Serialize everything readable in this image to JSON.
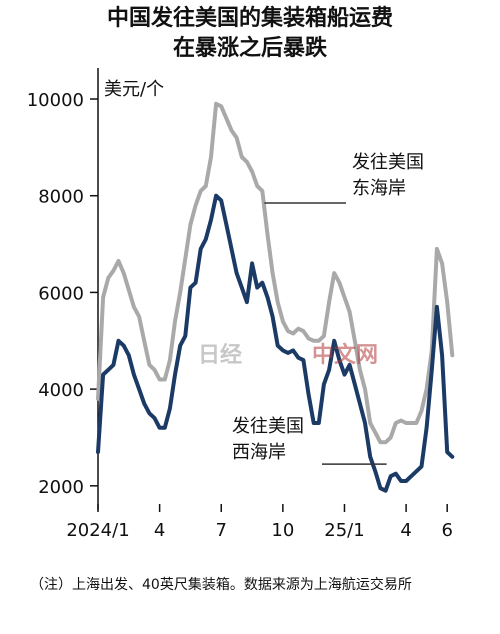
{
  "chart_data": {
    "type": "line",
    "title": "中国发往美国的集装箱船运费",
    "subtitle": "在暴涨之后暴跌",
    "ylabel": "美元/个",
    "ylim": [
      1500,
      10600
    ],
    "yticks": [
      2000,
      4000,
      6000,
      8000,
      10000
    ],
    "xlim": [
      0,
      18.5
    ],
    "xticks": [
      {
        "x": 0,
        "label": "2024/1"
      },
      {
        "x": 3,
        "label": "4"
      },
      {
        "x": 6,
        "label": "7"
      },
      {
        "x": 9,
        "label": "10"
      },
      {
        "x": 12,
        "label": "25/1"
      },
      {
        "x": 15,
        "label": "4"
      },
      {
        "x": 17,
        "label": "6"
      }
    ],
    "series": [
      {
        "name": "发往美国东海岸",
        "label_lines": [
          "发往美国",
          "东海岸"
        ],
        "color": "#a9a9a9",
        "points": [
          [
            0,
            3800
          ],
          [
            0.25,
            5900
          ],
          [
            0.5,
            6300
          ],
          [
            0.75,
            6450
          ],
          [
            1,
            6650
          ],
          [
            1.25,
            6400
          ],
          [
            1.5,
            6050
          ],
          [
            1.75,
            5700
          ],
          [
            2,
            5500
          ],
          [
            2.25,
            5000
          ],
          [
            2.5,
            4500
          ],
          [
            2.75,
            4400
          ],
          [
            3,
            4200
          ],
          [
            3.25,
            4200
          ],
          [
            3.5,
            4600
          ],
          [
            3.75,
            5400
          ],
          [
            4,
            6000
          ],
          [
            4.25,
            6700
          ],
          [
            4.5,
            7400
          ],
          [
            4.75,
            7800
          ],
          [
            5,
            8100
          ],
          [
            5.25,
            8200
          ],
          [
            5.5,
            8800
          ],
          [
            5.75,
            9900
          ],
          [
            6,
            9850
          ],
          [
            6.25,
            9600
          ],
          [
            6.5,
            9350
          ],
          [
            6.75,
            9200
          ],
          [
            7,
            8800
          ],
          [
            7.25,
            8700
          ],
          [
            7.5,
            8500
          ],
          [
            7.75,
            8200
          ],
          [
            8,
            8100
          ],
          [
            8.25,
            7200
          ],
          [
            8.5,
            6400
          ],
          [
            8.75,
            5800
          ],
          [
            9,
            5400
          ],
          [
            9.25,
            5200
          ],
          [
            9.5,
            5150
          ],
          [
            9.75,
            5250
          ],
          [
            10,
            5200
          ],
          [
            10.25,
            5050
          ],
          [
            10.5,
            5000
          ],
          [
            10.75,
            5000
          ],
          [
            11,
            5100
          ],
          [
            11.25,
            5800
          ],
          [
            11.5,
            6400
          ],
          [
            11.75,
            6200
          ],
          [
            12,
            5900
          ],
          [
            12.25,
            5600
          ],
          [
            12.5,
            5000
          ],
          [
            12.75,
            4400
          ],
          [
            13,
            4000
          ],
          [
            13.25,
            3300
          ],
          [
            13.5,
            3100
          ],
          [
            13.75,
            2900
          ],
          [
            14,
            2900
          ],
          [
            14.25,
            3000
          ],
          [
            14.5,
            3300
          ],
          [
            14.75,
            3350
          ],
          [
            15,
            3300
          ],
          [
            15.25,
            3300
          ],
          [
            15.5,
            3300
          ],
          [
            15.75,
            3550
          ],
          [
            16,
            4000
          ],
          [
            16.25,
            4800
          ],
          [
            16.5,
            6900
          ],
          [
            16.75,
            6600
          ],
          [
            17,
            5800
          ],
          [
            17.25,
            4700
          ]
        ]
      },
      {
        "name": "发往美国西海岸",
        "label_lines": [
          "发往美国",
          "西海岸"
        ],
        "color": "#1b3a66",
        "points": [
          [
            0,
            2700
          ],
          [
            0.25,
            4300
          ],
          [
            0.5,
            4400
          ],
          [
            0.75,
            4500
          ],
          [
            1,
            5000
          ],
          [
            1.25,
            4900
          ],
          [
            1.5,
            4700
          ],
          [
            1.75,
            4300
          ],
          [
            2,
            4000
          ],
          [
            2.25,
            3700
          ],
          [
            2.5,
            3500
          ],
          [
            2.75,
            3400
          ],
          [
            3,
            3200
          ],
          [
            3.25,
            3200
          ],
          [
            3.5,
            3600
          ],
          [
            3.75,
            4300
          ],
          [
            4,
            4900
          ],
          [
            4.25,
            5100
          ],
          [
            4.5,
            6100
          ],
          [
            4.75,
            6200
          ],
          [
            5,
            6900
          ],
          [
            5.25,
            7100
          ],
          [
            5.5,
            7500
          ],
          [
            5.75,
            8000
          ],
          [
            6,
            7900
          ],
          [
            6.25,
            7400
          ],
          [
            6.5,
            6900
          ],
          [
            6.75,
            6400
          ],
          [
            7,
            6100
          ],
          [
            7.25,
            5800
          ],
          [
            7.5,
            6600
          ],
          [
            7.75,
            6100
          ],
          [
            8,
            6200
          ],
          [
            8.25,
            5900
          ],
          [
            8.5,
            5500
          ],
          [
            8.75,
            4900
          ],
          [
            9,
            4800
          ],
          [
            9.25,
            4750
          ],
          [
            9.5,
            4800
          ],
          [
            9.75,
            4650
          ],
          [
            10,
            4600
          ],
          [
            10.25,
            3900
          ],
          [
            10.5,
            3300
          ],
          [
            10.75,
            3300
          ],
          [
            11,
            4100
          ],
          [
            11.25,
            4400
          ],
          [
            11.5,
            5000
          ],
          [
            11.75,
            4600
          ],
          [
            12,
            4300
          ],
          [
            12.25,
            4500
          ],
          [
            12.5,
            4100
          ],
          [
            12.75,
            3700
          ],
          [
            13,
            3300
          ],
          [
            13.25,
            2600
          ],
          [
            13.5,
            2300
          ],
          [
            13.75,
            1950
          ],
          [
            14,
            1900
          ],
          [
            14.25,
            2200
          ],
          [
            14.5,
            2250
          ],
          [
            14.75,
            2100
          ],
          [
            15,
            2100
          ],
          [
            15.25,
            2200
          ],
          [
            15.5,
            2300
          ],
          [
            15.75,
            2400
          ],
          [
            16,
            3200
          ],
          [
            16.25,
            4400
          ],
          [
            16.5,
            5700
          ],
          [
            16.75,
            4700
          ],
          [
            17,
            2700
          ],
          [
            17.25,
            2600
          ]
        ]
      }
    ],
    "grid": false,
    "legend": "inline"
  },
  "note": "（注）上海出发、40英尺集装箱。数据来源为上海航运交易所",
  "watermark": {
    "left": "日经",
    "right": "中文网"
  }
}
